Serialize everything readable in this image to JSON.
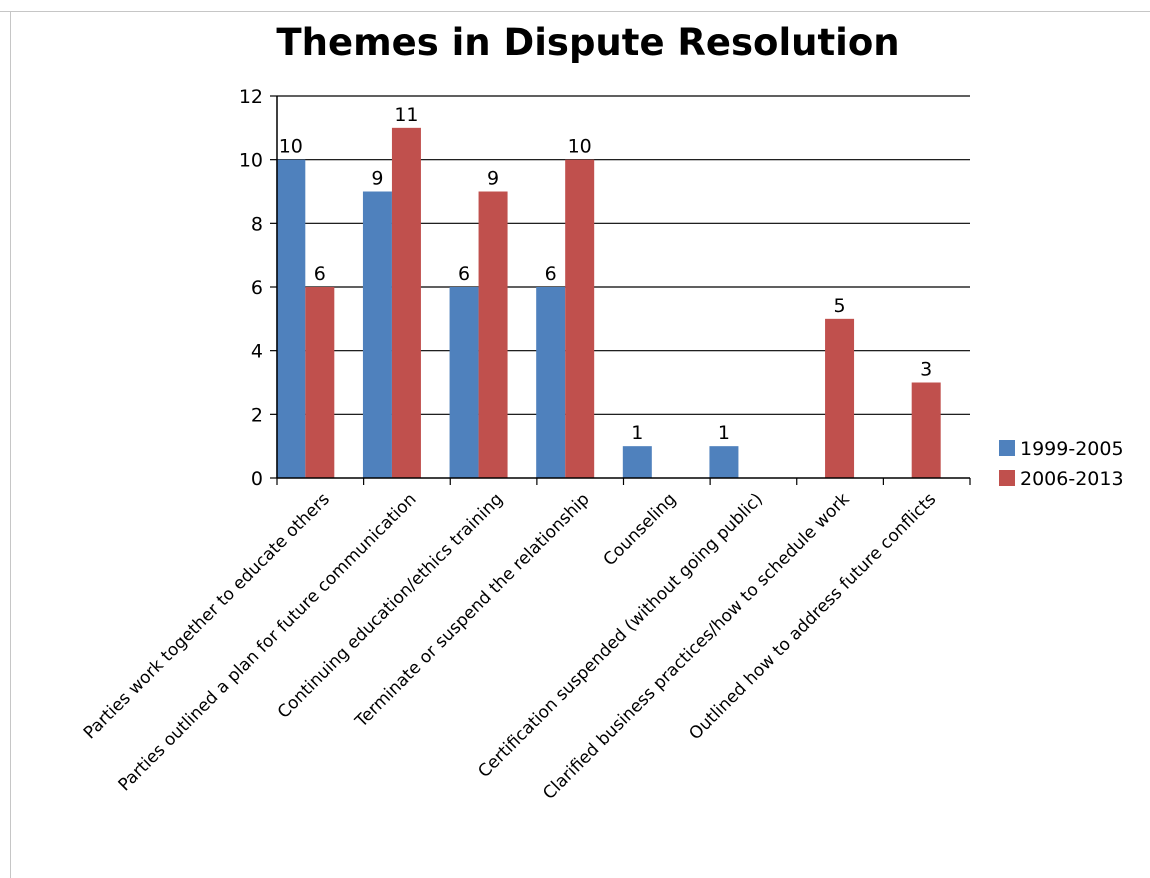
{
  "chart_data": {
    "type": "bar",
    "title": "Themes in Dispute Resolution",
    "xlabel": "",
    "ylabel": "",
    "ylim": [
      0,
      12
    ],
    "yticks": [
      0,
      2,
      4,
      6,
      8,
      10,
      12
    ],
    "grid": true,
    "legend_position": "right",
    "categories": [
      "Parties work together to educate others",
      "Parties outlined a plan for future communication",
      "Continuing education/ethics training",
      "Terminate or suspend the relationship",
      "Counseling",
      "Certification suspended (without going public)",
      "Clarified business practices/how to schedule work",
      "Outlined how to address future conflicts"
    ],
    "series": [
      {
        "name": "1999-2005",
        "color": "#4f81bd",
        "values": [
          10,
          9,
          6,
          6,
          1,
          1,
          0,
          0
        ],
        "labels": [
          "10",
          "9",
          "6",
          "6",
          "1",
          "1",
          "",
          ""
        ]
      },
      {
        "name": "2006-2013",
        "color": "#c0504d",
        "values": [
          6,
          11,
          9,
          10,
          0,
          0,
          5,
          3
        ],
        "labels": [
          "6",
          "11",
          "9",
          "10",
          "",
          "",
          "5",
          "3"
        ]
      }
    ]
  }
}
